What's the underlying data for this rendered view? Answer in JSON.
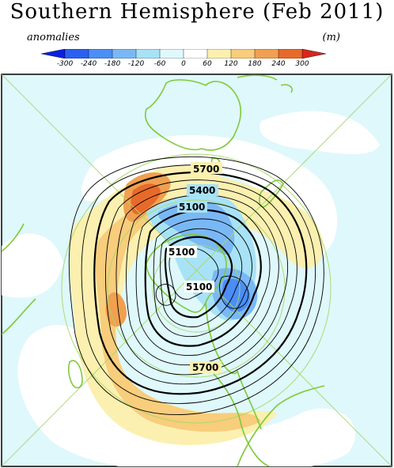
{
  "title": "Southern Hemisphere (Feb 2011)",
  "legend": {
    "left_label": "anomalies",
    "right_label": "(m)",
    "ticks": [
      "-300",
      "-240",
      "-180",
      "-120",
      "-60",
      "0",
      "60",
      "120",
      "180",
      "240",
      "300"
    ],
    "colors": [
      "#0c20e0",
      "#2a60f0",
      "#4c8ef5",
      "#7ab8f5",
      "#a8e2f7",
      "#dff8fb",
      "#ffffff",
      "#fbf0b0",
      "#f8cd7c",
      "#f0a050",
      "#e86a2a",
      "#d8261c"
    ]
  },
  "contour_labels": [
    "5700",
    "5400",
    "5100",
    "5100",
    "5100",
    "5700"
  ],
  "colors": {
    "coast": "#7fc93a",
    "grid": "#a6d86a",
    "background_anomaly": "#dff8fb"
  }
}
